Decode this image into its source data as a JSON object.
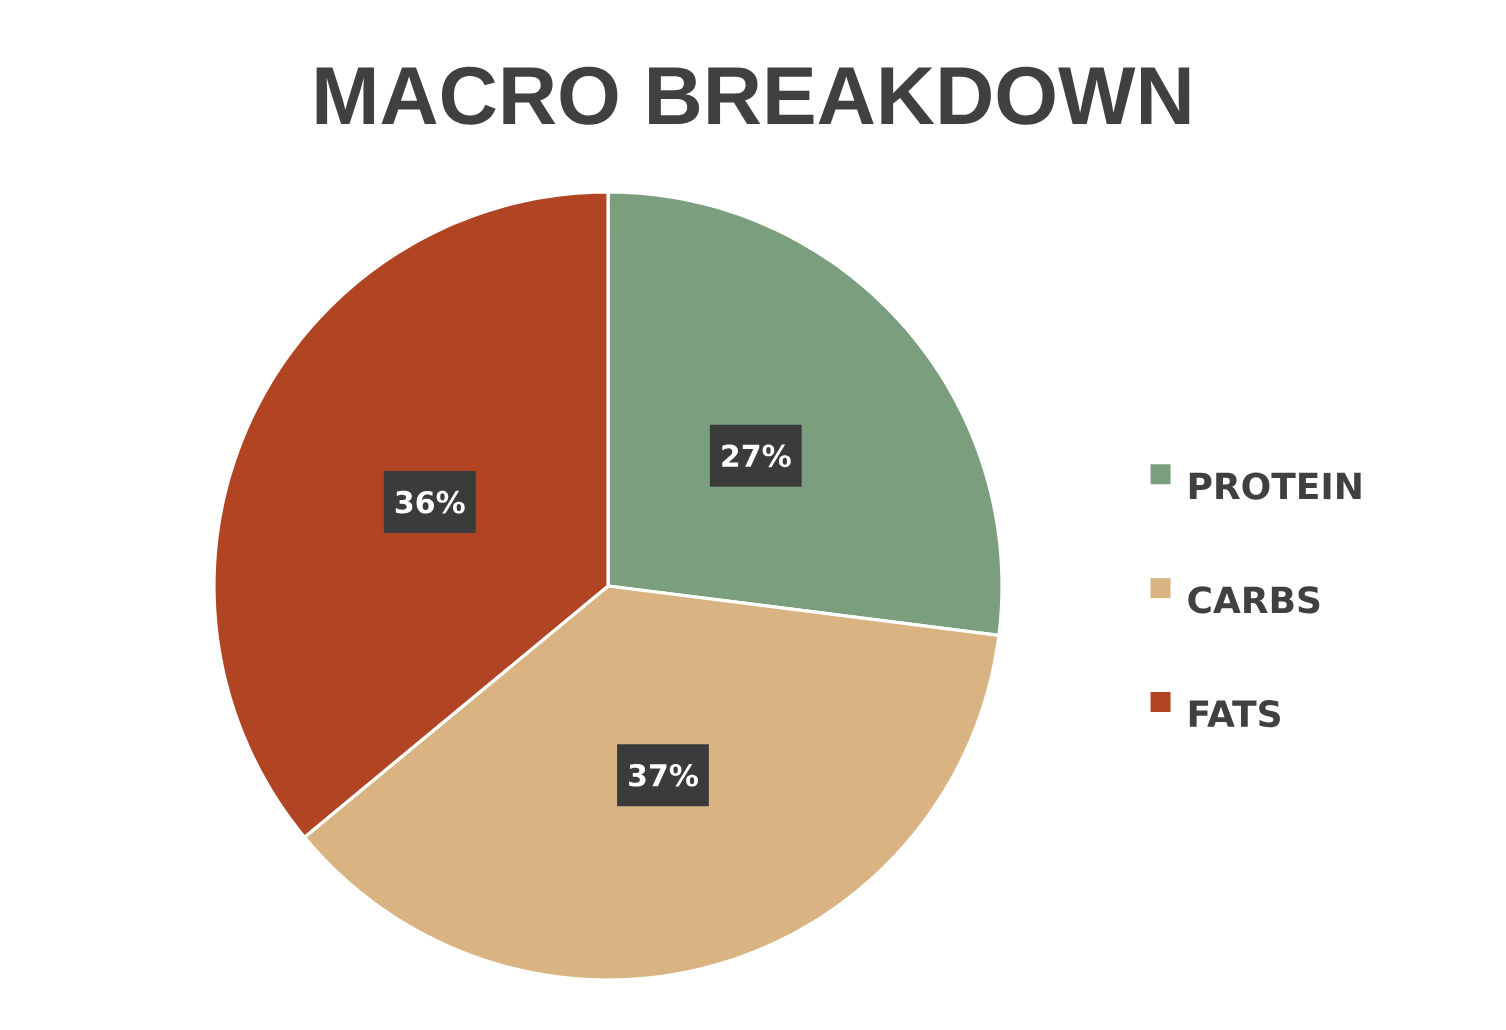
{
  "chart_data": {
    "type": "pie",
    "title": "MACRO BREAKDOWN",
    "categories": [
      "PROTEIN",
      "CARBS",
      "FATS"
    ],
    "values": [
      27,
      37,
      36
    ],
    "value_labels": [
      "27%",
      "37%",
      "36%"
    ],
    "colors": [
      "#7a9e7e",
      "#d9b382",
      "#b04423"
    ],
    "legend": "right"
  }
}
